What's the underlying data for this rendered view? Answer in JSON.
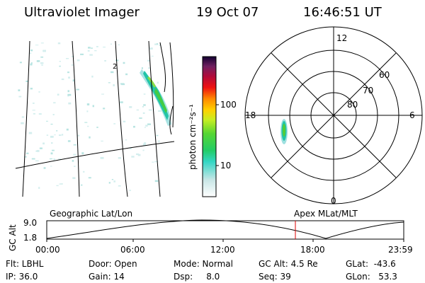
{
  "header": {
    "title": "Ultraviolet Imager",
    "date": "19 Oct 07",
    "time": "16:46:51 UT"
  },
  "colorbar": {
    "unit_label": "photon cm⁻²s⁻¹",
    "ticks": [
      "100",
      "10"
    ],
    "scale": "log"
  },
  "polar_plot": {
    "mlt_labels": [
      "12",
      "18",
      "6",
      "0"
    ],
    "lat_labels": [
      "60",
      "70",
      "80"
    ]
  },
  "strip": {
    "left_title": "Geographic Lat/Lon",
    "right_title": "Apex MLat/MLT",
    "ylabel": "GC Alt",
    "y_ticks": [
      "9.0",
      "1.8"
    ],
    "x_ticks": [
      "00:00",
      "06:00",
      "12:00",
      "18:00",
      "23:59"
    ],
    "current_time_color": "#dd0000"
  },
  "info": {
    "flt": "Flt: LBHL",
    "ip": "IP: 36.0",
    "door": "Door: Open",
    "gain": "Gain: 14",
    "mode": "Mode: Normal",
    "dsp": "Dsp:     8.0",
    "gcalt": "GC Alt: 4.5 Re",
    "seq": "Seq: 39",
    "glat": "GLat:  -43.6",
    "glon": "GLon:   53.3"
  }
}
